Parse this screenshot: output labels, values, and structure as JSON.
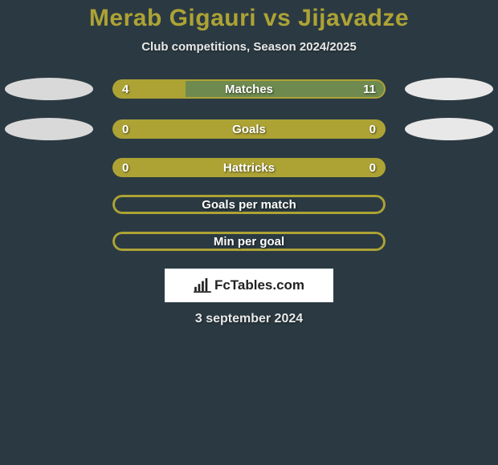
{
  "background_color": "#2b3a42",
  "title": "Merab Gigauri vs Jijavadze",
  "title_color": "#ada335",
  "title_fontsize": 30,
  "subtitle": "Club competitions, Season 2024/2025",
  "subtitle_color": "#e8e8e8",
  "accent_color": "#ada335",
  "rows": [
    {
      "label": "Matches",
      "left_value": "4",
      "right_value": "11",
      "left_num": 4,
      "right_num": 11,
      "show_left_oval": true,
      "show_right_oval": true,
      "fill_mode": "split",
      "left_pct": 26.7,
      "right_pct": 73.3,
      "left_fill_color": "#ada335",
      "right_fill_color": "#6e8a4e",
      "border_color": "#ada335",
      "border_width": 2
    },
    {
      "label": "Goals",
      "left_value": "0",
      "right_value": "0",
      "left_num": 0,
      "right_num": 0,
      "show_left_oval": true,
      "show_right_oval": true,
      "fill_mode": "full",
      "full_fill_color": "#ada335",
      "border_color": "#ada335",
      "border_width": 2
    },
    {
      "label": "Hattricks",
      "left_value": "0",
      "right_value": "0",
      "left_num": 0,
      "right_num": 0,
      "show_left_oval": false,
      "show_right_oval": false,
      "fill_mode": "full",
      "full_fill_color": "#ada335",
      "border_color": "#ada335",
      "border_width": 2
    },
    {
      "label": "Goals per match",
      "left_value": "",
      "right_value": "",
      "left_num": null,
      "right_num": null,
      "show_left_oval": false,
      "show_right_oval": false,
      "fill_mode": "empty",
      "border_color": "#ada335",
      "border_width": 3
    },
    {
      "label": "Min per goal",
      "left_value": "",
      "right_value": "",
      "left_num": null,
      "right_num": null,
      "show_left_oval": false,
      "show_right_oval": false,
      "fill_mode": "empty",
      "border_color": "#ada335",
      "border_width": 3
    }
  ],
  "logo": {
    "text": "FcTables.com",
    "box_bg": "#ffffff",
    "text_color": "#222222"
  },
  "date_text": "3 september 2024",
  "oval_left_color": "#d9d9d9",
  "oval_right_color": "#e8e8e8"
}
